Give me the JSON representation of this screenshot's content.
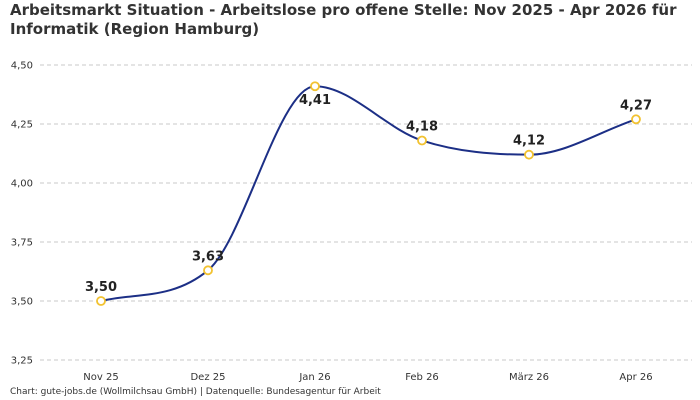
{
  "title": "Arbeitsmarkt Situation - Arbeitslose pro offene Stelle: Nov 2025 - Apr 2026 für Informatik (Region Hamburg)",
  "footer": "Chart: gute-jobs.de (Wollmilchsau GmbH) | Datenquelle: Bundesagentur für Arbeit",
  "colors": {
    "line": "#1c2f86",
    "marker_stroke": "#f2c230",
    "marker_fill": "#ffffff",
    "grid": "#c8c8c8"
  },
  "chart_data": {
    "type": "line",
    "title": "Arbeitsmarkt Situation - Arbeitslose pro offene Stelle: Nov 2025 - Apr 2026 für Informatik (Region Hamburg)",
    "xlabel": "",
    "ylabel": "",
    "categories": [
      "Nov 25",
      "Dez 25",
      "Jan 26",
      "Feb 26",
      "März 26",
      "Apr 26"
    ],
    "series": [
      {
        "values": [
          3.5,
          3.63,
          4.41,
          4.18,
          4.12,
          4.27
        ]
      }
    ],
    "data_labels": [
      "3,50",
      "3,63",
      "4,41",
      "4,18",
      "4,12",
      "4,27"
    ],
    "ylim": [
      3.25,
      4.5
    ],
    "yticks": [
      3.25,
      3.5,
      3.75,
      4.0,
      4.25,
      4.5
    ],
    "ytick_labels": [
      "3,25",
      "3,50",
      "3,75",
      "4,00",
      "4,25",
      "4,50"
    ],
    "grid": true,
    "smooth": true,
    "legend": "none"
  }
}
